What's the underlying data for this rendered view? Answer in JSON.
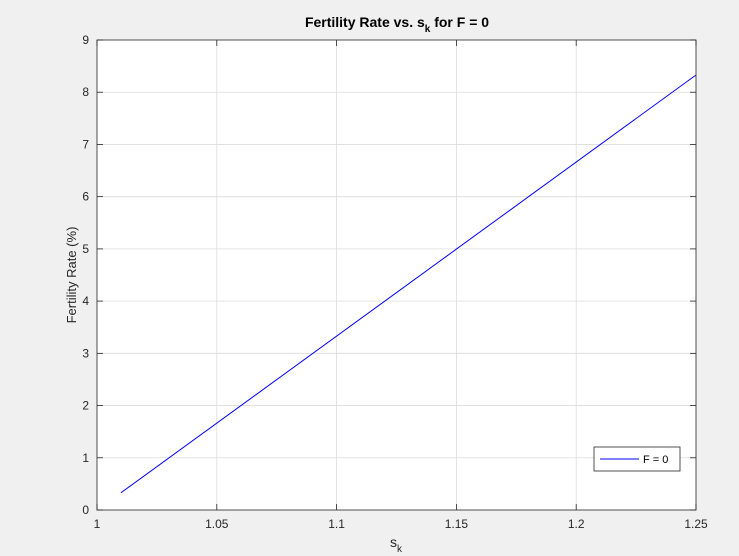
{
  "chart_data": {
    "type": "line",
    "title": {
      "prefix": "Fertility Rate vs. s",
      "subscript": "k",
      "suffix": " for F = 0"
    },
    "xlabel": {
      "base": "s",
      "subscript": "k"
    },
    "ylabel": "Fertility Rate (%)",
    "xlim": [
      1,
      1.25
    ],
    "ylim": [
      0,
      9
    ],
    "xticks": [
      1,
      1.05,
      1.1,
      1.15,
      1.2,
      1.25
    ],
    "xtick_labels": [
      "1",
      "1.05",
      "1.1",
      "1.15",
      "1.2",
      "1.25"
    ],
    "yticks": [
      0,
      1,
      2,
      3,
      4,
      5,
      6,
      7,
      8,
      9
    ],
    "ytick_labels": [
      "0",
      "1",
      "2",
      "3",
      "4",
      "5",
      "6",
      "7",
      "8",
      "9"
    ],
    "grid": true,
    "legend_position": "bottom-right",
    "series": [
      {
        "name": "F = 0",
        "color": "#0000ff",
        "x": [
          1.01,
          1.25
        ],
        "y": [
          0.33,
          8.33
        ]
      }
    ]
  }
}
